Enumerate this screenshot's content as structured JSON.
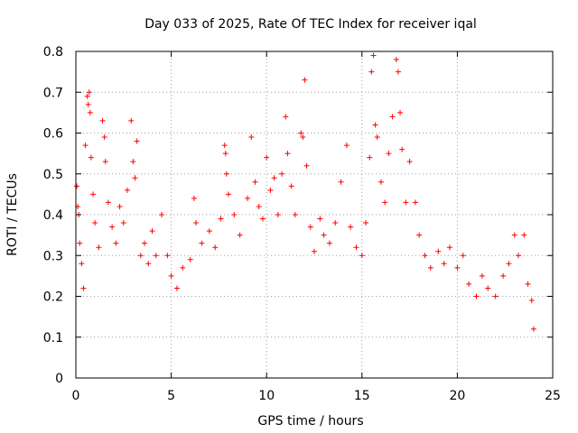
{
  "chart_data": {
    "type": "scatter",
    "title": "Day 033 of 2025, Rate Of TEC Index for receiver iqal",
    "xlabel": "GPS time / hours",
    "ylabel": "ROTI / TECUs",
    "xlim": [
      0,
      25
    ],
    "ylim": [
      0,
      0.8
    ],
    "xticks": [
      0,
      5,
      10,
      15,
      20,
      25
    ],
    "xtick_labels": [
      "0",
      "5",
      "10",
      "15",
      "20",
      "25"
    ],
    "yticks": [
      0,
      0.1,
      0.2,
      0.3,
      0.4,
      0.5,
      0.6,
      0.7,
      0.8
    ],
    "ytick_labels": [
      "0",
      "0.1",
      "0.2",
      "0.3",
      "0.4",
      "0.5",
      "0.6",
      "0.7",
      "0.8"
    ],
    "grid": true,
    "marker": "+",
    "color": "#ff0000",
    "series": [
      {
        "points": [
          [
            0.05,
            0.47
          ],
          [
            0.1,
            0.42
          ],
          [
            0.15,
            0.4
          ],
          [
            0.2,
            0.33
          ],
          [
            0.3,
            0.28
          ],
          [
            0.4,
            0.22
          ],
          [
            0.5,
            0.57
          ],
          [
            0.6,
            0.69
          ],
          [
            0.65,
            0.67
          ],
          [
            0.7,
            0.7
          ],
          [
            0.75,
            0.65
          ],
          [
            0.8,
            0.54
          ],
          [
            0.9,
            0.45
          ],
          [
            1.0,
            0.38
          ],
          [
            1.2,
            0.32
          ],
          [
            1.4,
            0.63
          ],
          [
            1.5,
            0.59
          ],
          [
            1.55,
            0.53
          ],
          [
            1.7,
            0.43
          ],
          [
            1.9,
            0.37
          ],
          [
            2.1,
            0.33
          ],
          [
            2.3,
            0.42
          ],
          [
            2.5,
            0.38
          ],
          [
            2.7,
            0.46
          ],
          [
            2.9,
            0.63
          ],
          [
            3.0,
            0.53
          ],
          [
            3.1,
            0.49
          ],
          [
            3.2,
            0.58
          ],
          [
            3.4,
            0.3
          ],
          [
            3.6,
            0.33
          ],
          [
            3.8,
            0.28
          ],
          [
            4.0,
            0.36
          ],
          [
            4.2,
            0.3
          ],
          [
            4.5,
            0.4
          ],
          [
            4.8,
            0.3
          ],
          [
            5.0,
            0.25
          ],
          [
            5.3,
            0.22
          ],
          [
            5.6,
            0.27
          ],
          [
            6.0,
            0.29
          ],
          [
            6.2,
            0.44
          ],
          [
            6.3,
            0.38
          ],
          [
            6.6,
            0.33
          ],
          [
            7.0,
            0.36
          ],
          [
            7.3,
            0.32
          ],
          [
            7.6,
            0.39
          ],
          [
            7.8,
            0.57
          ],
          [
            7.85,
            0.55
          ],
          [
            7.9,
            0.5
          ],
          [
            8.0,
            0.45
          ],
          [
            8.3,
            0.4
          ],
          [
            8.6,
            0.35
          ],
          [
            9.0,
            0.44
          ],
          [
            9.2,
            0.59
          ],
          [
            9.4,
            0.48
          ],
          [
            9.6,
            0.42
          ],
          [
            9.8,
            0.39
          ],
          [
            10.0,
            0.54
          ],
          [
            10.2,
            0.46
          ],
          [
            10.4,
            0.49
          ],
          [
            10.6,
            0.4
          ],
          [
            10.8,
            0.5
          ],
          [
            11.0,
            0.64
          ],
          [
            11.1,
            0.55
          ],
          [
            11.3,
            0.47
          ],
          [
            11.5,
            0.4
          ],
          [
            11.8,
            0.6
          ],
          [
            11.9,
            0.59
          ],
          [
            12.0,
            0.73
          ],
          [
            12.1,
            0.52
          ],
          [
            12.3,
            0.37
          ],
          [
            12.5,
            0.31
          ],
          [
            12.8,
            0.39
          ],
          [
            13.0,
            0.35
          ],
          [
            13.3,
            0.33
          ],
          [
            13.6,
            0.38
          ],
          [
            13.9,
            0.48
          ],
          [
            14.2,
            0.57
          ],
          [
            14.4,
            0.37
          ],
          [
            14.7,
            0.32
          ],
          [
            15.0,
            0.3
          ],
          [
            15.2,
            0.38
          ],
          [
            15.4,
            0.54
          ],
          [
            15.5,
            0.75
          ],
          [
            15.6,
            0.79
          ],
          [
            15.7,
            0.62
          ],
          [
            15.8,
            0.59
          ],
          [
            16.0,
            0.48
          ],
          [
            16.2,
            0.43
          ],
          [
            16.4,
            0.55
          ],
          [
            16.6,
            0.64
          ],
          [
            16.8,
            0.78
          ],
          [
            16.9,
            0.75
          ],
          [
            17.0,
            0.65
          ],
          [
            17.1,
            0.56
          ],
          [
            17.3,
            0.43
          ],
          [
            17.5,
            0.53
          ],
          [
            17.8,
            0.43
          ],
          [
            18.0,
            0.35
          ],
          [
            18.3,
            0.3
          ],
          [
            18.6,
            0.27
          ],
          [
            19.0,
            0.31
          ],
          [
            19.3,
            0.28
          ],
          [
            19.6,
            0.32
          ],
          [
            20.0,
            0.27
          ],
          [
            20.3,
            0.3
          ],
          [
            20.6,
            0.23
          ],
          [
            21.0,
            0.2
          ],
          [
            21.3,
            0.25
          ],
          [
            21.6,
            0.22
          ],
          [
            22.0,
            0.2
          ],
          [
            22.4,
            0.25
          ],
          [
            22.7,
            0.28
          ],
          [
            23.0,
            0.35
          ],
          [
            23.2,
            0.3
          ],
          [
            23.5,
            0.35
          ],
          [
            23.7,
            0.23
          ],
          [
            23.9,
            0.19
          ],
          [
            24.0,
            0.12
          ]
        ]
      }
    ]
  }
}
